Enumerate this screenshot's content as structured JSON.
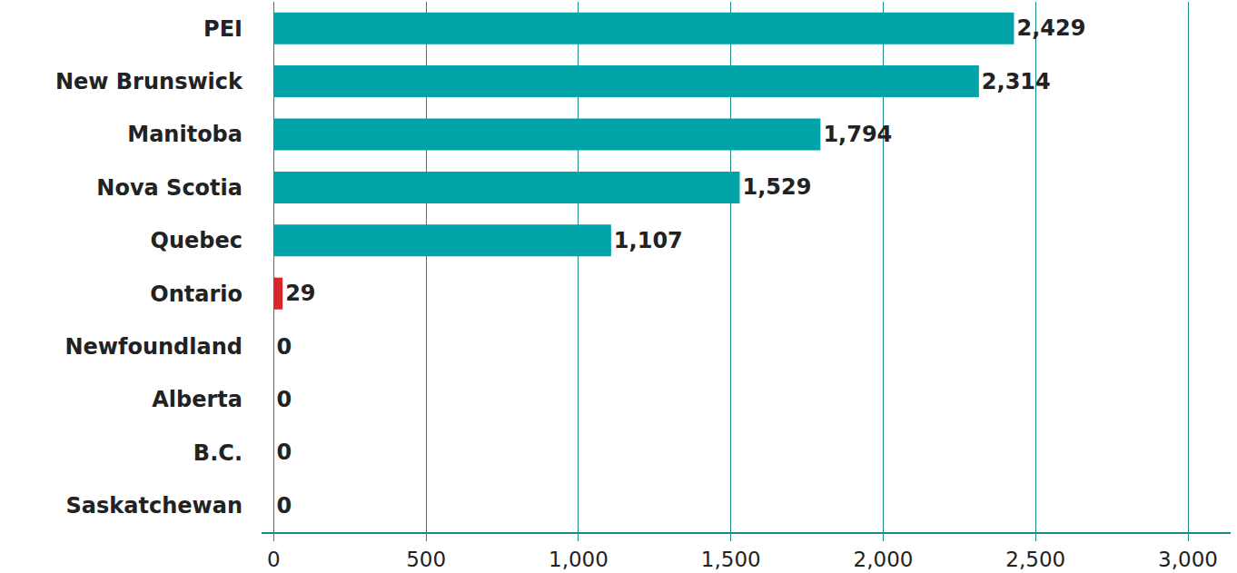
{
  "chart_data": {
    "type": "bar",
    "orientation": "horizontal",
    "categories": [
      "PEI",
      "New Brunswick",
      "Manitoba",
      "Nova Scotia",
      "Quebec",
      "Ontario",
      "Newfoundland",
      "Alberta",
      "B.C.",
      "Saskatchewan"
    ],
    "values": [
      2429,
      2314,
      1794,
      1529,
      1107,
      29,
      0,
      0,
      0,
      0
    ],
    "value_labels": [
      "2,429",
      "2,314",
      "1,794",
      "1,529",
      "1,107",
      "29",
      "0",
      "0",
      "0",
      "0"
    ],
    "colors": [
      "#00a3a8",
      "#00a3a8",
      "#00a3a8",
      "#00a3a8",
      "#00a3a8",
      "#d9262c",
      "#00a3a8",
      "#00a3a8",
      "#00a3a8",
      "#00a3a8"
    ],
    "data_labels": true,
    "xlim": [
      -40,
      3140
    ],
    "xticks": [
      0,
      500,
      {
        "value": 1000,
        "label": "1,000"
      },
      {
        "value": 1500,
        "label": "1,500"
      },
      {
        "value": 2000,
        "label": "2,000"
      },
      {
        "value": 2500,
        "label": "2,500"
      },
      {
        "value": 3000,
        "label": "3,000"
      }
    ],
    "grid": true
  }
}
